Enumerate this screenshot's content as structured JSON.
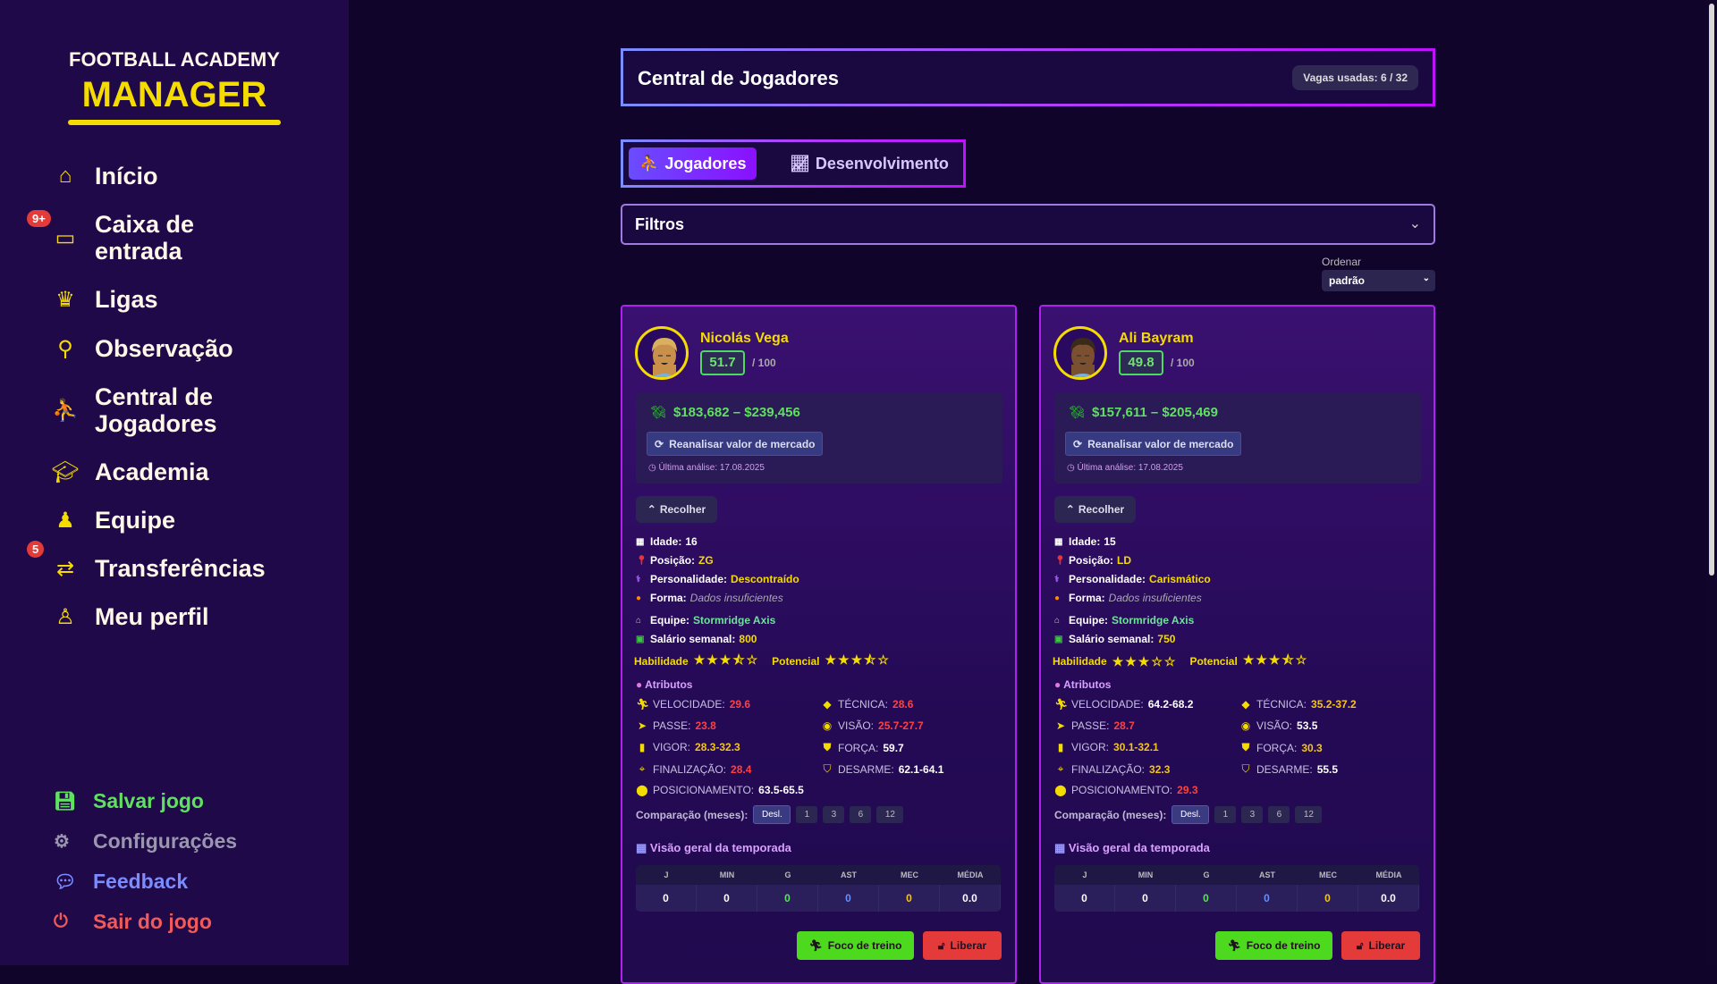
{
  "brand": {
    "line1": "FOOTBALL ACADEMY",
    "line2": "MANAGER"
  },
  "nav": [
    {
      "label": "Início",
      "icon": "home-icon"
    },
    {
      "label": "Caixa de entrada",
      "icon": "inbox-icon",
      "badge": "9+"
    },
    {
      "label": "Ligas",
      "icon": "trophy-icon"
    },
    {
      "label": "Observação",
      "icon": "search-icon"
    },
    {
      "label": "Central de Jogadores",
      "icon": "players-icon"
    },
    {
      "label": "Academia",
      "icon": "graduation-cap-icon"
    },
    {
      "label": "Equipe",
      "icon": "team-icon"
    },
    {
      "label": "Transferências",
      "icon": "transfer-icon",
      "badge": "5"
    },
    {
      "label": "Meu perfil",
      "icon": "user-icon"
    }
  ],
  "bottom_nav": [
    {
      "label": "Salvar jogo",
      "icon": "save-icon",
      "color": "#5fe05f"
    },
    {
      "label": "Configurações",
      "icon": "gear-icon",
      "color": "#9a96b0"
    },
    {
      "label": "Feedback",
      "icon": "chat-icon",
      "color": "#7a8cff"
    },
    {
      "label": "Sair do jogo",
      "icon": "power-icon",
      "color": "#f05a5a"
    }
  ],
  "header": {
    "title": "Central de Jogadores",
    "slots": "Vagas usadas: 6 / 32"
  },
  "tabs": [
    {
      "label": "Jogadores",
      "active": true
    },
    {
      "label": "Desenvolvimento",
      "active": false
    }
  ],
  "filters": {
    "label": "Filtros"
  },
  "sort": {
    "label": "Ordenar",
    "value": "padrão"
  },
  "labels": {
    "reanalyze": "Reanalisar valor de mercado",
    "collapse": "Recolher",
    "age": "Idade:",
    "position": "Posição:",
    "personality": "Personalidade:",
    "form": "Forma:",
    "team": "Equipe:",
    "salary": "Salário semanal:",
    "ability": "Habilidade",
    "potential": "Potencial",
    "attributes": "Atributos",
    "comparison": "Comparação (meses):",
    "comparison_options": [
      "Desl.",
      "1",
      "3",
      "6",
      "12"
    ],
    "season": "Visão geral da temporada",
    "season_cols": [
      "J",
      "MIN",
      "G",
      "AST",
      "MEC",
      "MÉDIA"
    ],
    "train": "Foco de treino",
    "release": "Liberar",
    "rating_max": "/ 100"
  },
  "players": [
    {
      "name": "Nicolás Vega",
      "rating": "51.7",
      "value": "$183,682 – $239,456",
      "last_analysis": "Última análise: 17.08.2025",
      "age": "16",
      "position": "ZG",
      "personality": "Descontraído",
      "form": "Dados insuficientes",
      "team": "Stormridge Axis",
      "salary": "800",
      "ability_stars": 3.5,
      "potential_stars": 3.5,
      "hair": "#d8b060",
      "skin": "#c8904a",
      "attributes": [
        {
          "label": "VELOCIDADE:",
          "value": "29.6",
          "tone": "red"
        },
        {
          "label": "PASSE:",
          "value": "23.8",
          "tone": "red"
        },
        {
          "label": "VIGOR:",
          "value": "28.3-32.3",
          "tone": "yellow"
        },
        {
          "label": "FINALIZAÇÃO:",
          "value": "28.4",
          "tone": "red"
        },
        {
          "label": "POSICIONAMENTO:",
          "value": "63.5-65.5",
          "tone": "white"
        },
        {
          "label": "TÉCNICA:",
          "value": "28.6",
          "tone": "red"
        },
        {
          "label": "VISÃO:",
          "value": "25.7-27.7",
          "tone": "red"
        },
        {
          "label": "FORÇA:",
          "value": "59.7",
          "tone": "white"
        },
        {
          "label": "DESARME:",
          "value": "62.1-64.1",
          "tone": "white"
        }
      ],
      "season": [
        "0",
        "0",
        "0",
        "0",
        "0",
        "0.0"
      ]
    },
    {
      "name": "Ali Bayram",
      "rating": "49.8",
      "value": "$157,611 – $205,469",
      "last_analysis": "Última análise: 17.08.2025",
      "age": "15",
      "position": "LD",
      "personality": "Carismático",
      "form": "Dados insuficientes",
      "team": "Stormridge Axis",
      "salary": "750",
      "ability_stars": 3,
      "potential_stars": 3.5,
      "hair": "#3a2a1a",
      "skin": "#7a5030",
      "attributes": [
        {
          "label": "VELOCIDADE:",
          "value": "64.2-68.2",
          "tone": "white"
        },
        {
          "label": "PASSE:",
          "value": "28.7",
          "tone": "red"
        },
        {
          "label": "VIGOR:",
          "value": "30.1-32.1",
          "tone": "yellow"
        },
        {
          "label": "FINALIZAÇÃO:",
          "value": "32.3",
          "tone": "yellow"
        },
        {
          "label": "POSICIONAMENTO:",
          "value": "29.3",
          "tone": "red"
        },
        {
          "label": "TÉCNICA:",
          "value": "35.2-37.2",
          "tone": "yellow"
        },
        {
          "label": "VISÃO:",
          "value": "53.5",
          "tone": "white"
        },
        {
          "label": "FORÇA:",
          "value": "30.3",
          "tone": "yellow"
        },
        {
          "label": "DESARME:",
          "value": "55.5",
          "tone": "white"
        }
      ],
      "season": [
        "0",
        "0",
        "0",
        "0",
        "0",
        "0.0"
      ]
    }
  ],
  "season_colors": [
    "#ffffff",
    "#ffffff",
    "#5fe05f",
    "#6a8cff",
    "#f5c518",
    "#ffffff"
  ]
}
